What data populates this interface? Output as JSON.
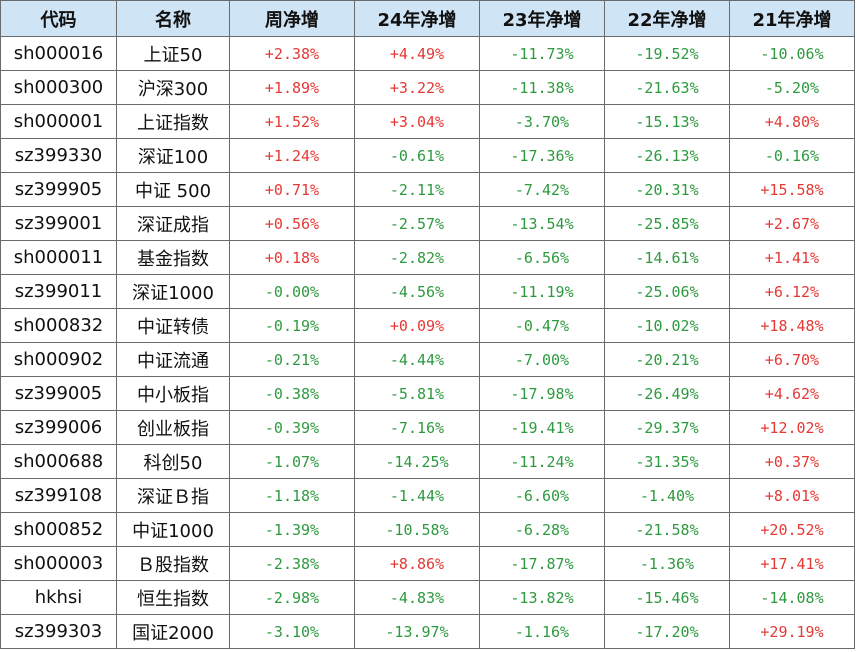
{
  "table": {
    "headers": [
      "代码",
      "名称",
      "周净增",
      "24年净增",
      "23年净增",
      "22年净增",
      "21年净增"
    ],
    "colors": {
      "positive": "#e53935",
      "negative": "#2e9a3f",
      "header_bg": "#cfe4f5"
    },
    "rows": [
      {
        "code": "sh000016",
        "name": "上证50",
        "values": [
          "+2.38%",
          "+4.49%",
          "-11.73%",
          "-19.52%",
          "-10.06%"
        ]
      },
      {
        "code": "sh000300",
        "name": "沪深300",
        "values": [
          "+1.89%",
          "+3.22%",
          "-11.38%",
          "-21.63%",
          "-5.20%"
        ]
      },
      {
        "code": "sh000001",
        "name": "上证指数",
        "values": [
          "+1.52%",
          "+3.04%",
          "-3.70%",
          "-15.13%",
          "+4.80%"
        ]
      },
      {
        "code": "sz399330",
        "name": "深证100",
        "values": [
          "+1.24%",
          "-0.61%",
          "-17.36%",
          "-26.13%",
          "-0.16%"
        ]
      },
      {
        "code": "sz399905",
        "name": "中证 500",
        "values": [
          "+0.71%",
          "-2.11%",
          "-7.42%",
          "-20.31%",
          "+15.58%"
        ]
      },
      {
        "code": "sz399001",
        "name": "深证成指",
        "values": [
          "+0.56%",
          "-2.57%",
          "-13.54%",
          "-25.85%",
          "+2.67%"
        ]
      },
      {
        "code": "sh000011",
        "name": "基金指数",
        "values": [
          "+0.18%",
          "-2.82%",
          "-6.56%",
          "-14.61%",
          "+1.41%"
        ]
      },
      {
        "code": "sz399011",
        "name": "深证1000",
        "values": [
          "-0.00%",
          "-4.56%",
          "-11.19%",
          "-25.06%",
          "+6.12%"
        ]
      },
      {
        "code": "sh000832",
        "name": "中证转债",
        "values": [
          "-0.19%",
          "+0.09%",
          "-0.47%",
          "-10.02%",
          "+18.48%"
        ]
      },
      {
        "code": "sh000902",
        "name": "中证流通",
        "values": [
          "-0.21%",
          "-4.44%",
          "-7.00%",
          "-20.21%",
          "+6.70%"
        ]
      },
      {
        "code": "sz399005",
        "name": "中小板指",
        "values": [
          "-0.38%",
          "-5.81%",
          "-17.98%",
          "-26.49%",
          "+4.62%"
        ]
      },
      {
        "code": "sz399006",
        "name": "创业板指",
        "values": [
          "-0.39%",
          "-7.16%",
          "-19.41%",
          "-29.37%",
          "+12.02%"
        ]
      },
      {
        "code": "sh000688",
        "name": "科创50",
        "values": [
          "-1.07%",
          "-14.25%",
          "-11.24%",
          "-31.35%",
          "+0.37%"
        ]
      },
      {
        "code": "sz399108",
        "name": "深证Ｂ指",
        "values": [
          "-1.18%",
          "-1.44%",
          "-6.60%",
          "-1.40%",
          "+8.01%"
        ]
      },
      {
        "code": "sh000852",
        "name": "中证1000",
        "values": [
          "-1.39%",
          "-10.58%",
          "-6.28%",
          "-21.58%",
          "+20.52%"
        ]
      },
      {
        "code": "sh000003",
        "name": "Ｂ股指数",
        "values": [
          "-2.38%",
          "+8.86%",
          "-17.87%",
          "-1.36%",
          "+17.41%"
        ]
      },
      {
        "code": "hkhsi",
        "name": "恒生指数",
        "values": [
          "-2.98%",
          "-4.83%",
          "-13.82%",
          "-15.46%",
          "-14.08%"
        ]
      },
      {
        "code": "sz399303",
        "name": "国证2000",
        "values": [
          "-3.10%",
          "-13.97%",
          "-1.16%",
          "-17.20%",
          "+29.19%"
        ]
      }
    ]
  }
}
